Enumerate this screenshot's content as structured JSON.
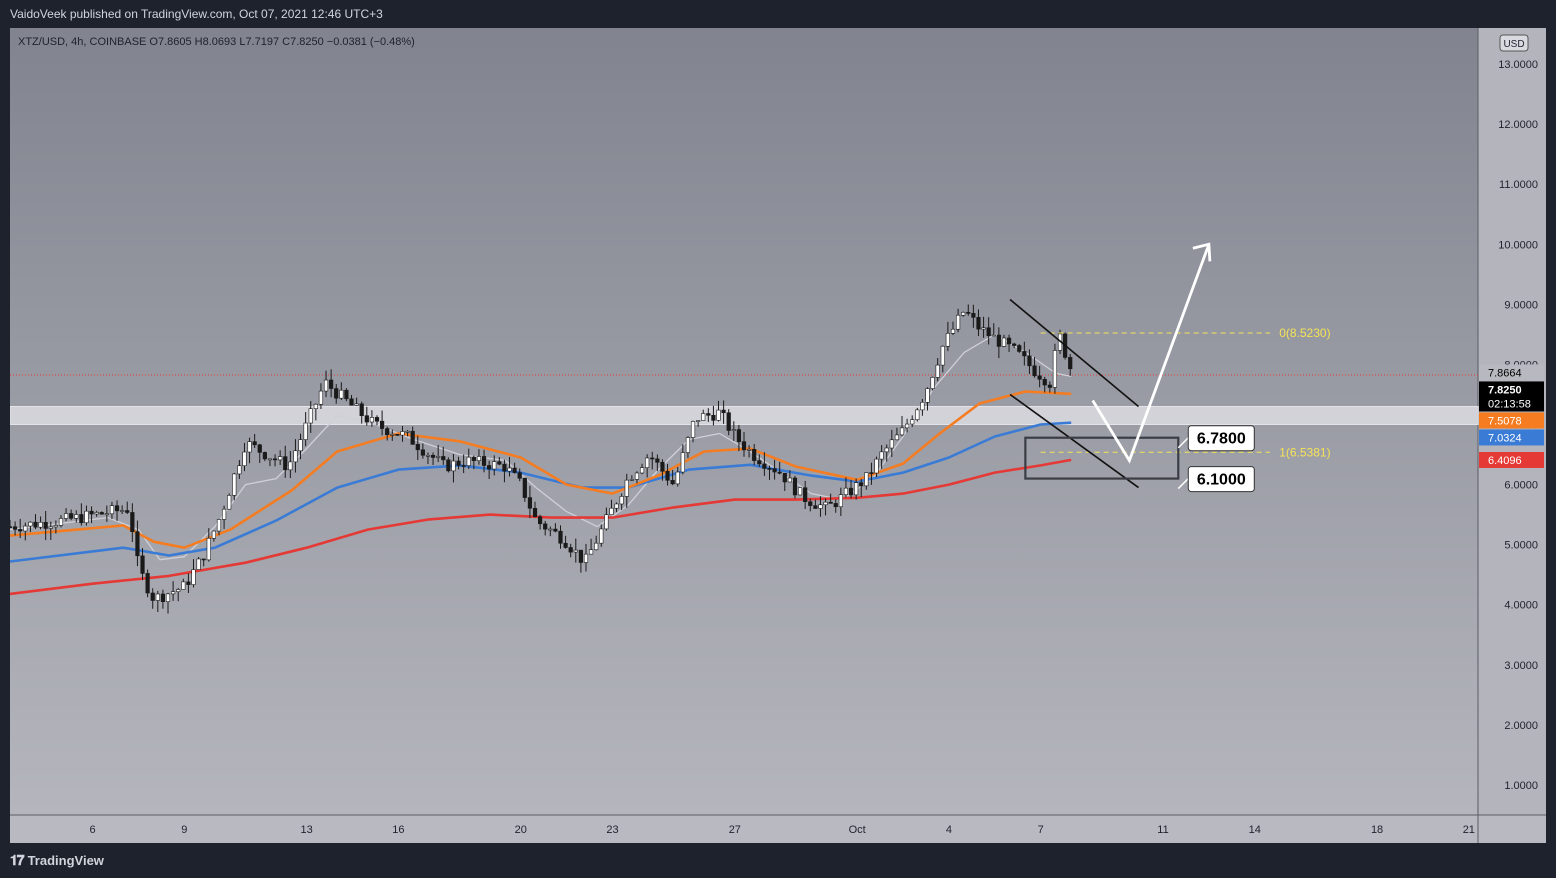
{
  "header": {
    "published": "VaidoVeek published on TradingView.com, Oct 07, 2021 12:46 UTC+3"
  },
  "footer": {
    "brand": "TradingView"
  },
  "colors": {
    "ema_orange": "#f57c20",
    "ema_blue": "#3a7bd5",
    "ema_red": "#e53935",
    "ma_grey": "#cfcfd8",
    "bull_candle": "#ffffff",
    "bear_candle": "#1a1a1a",
    "fib_label": "#f5e356"
  },
  "chart_data": {
    "type": "candlestick",
    "symbol_line": "XTZ/USD, 4h, COINBASE  O7.8605  H8.0693  L7.7197  C7.8250  −0.0381 (−0.48%)",
    "currency_badge": "USD",
    "ylim": [
      0.5,
      13.6
    ],
    "y_ticks": [
      "13.0000",
      "12.0000",
      "11.0000",
      "10.0000",
      "9.0000",
      "8.0000",
      "7.0000",
      "6.0000",
      "5.0000",
      "4.0000",
      "3.0000",
      "2.0000",
      "1.0000"
    ],
    "y_tick_values": [
      13,
      12,
      11,
      10,
      9,
      8,
      7,
      6,
      5,
      4,
      3,
      2,
      1
    ],
    "x_ticks": [
      "6",
      "9",
      "13",
      "16",
      "20",
      "23",
      "27",
      "Oct",
      "4",
      "7",
      "11",
      "14",
      "18",
      "21"
    ],
    "x_tick_days": [
      6,
      9,
      13,
      16,
      20,
      23,
      27,
      31,
      34,
      37,
      41,
      44,
      48,
      51
    ],
    "x_day_range": [
      3.3,
      51.3
    ],
    "price_labels": [
      {
        "text": "7.8664",
        "value": 7.8664,
        "bg": "#b8b8c0",
        "fg": "#000000"
      },
      {
        "text": "7.8250",
        "value": 7.825,
        "bg": "#000000",
        "fg": "#ffffff",
        "sub": "02:13:58"
      },
      {
        "text": "7.5078",
        "value": 7.5078,
        "bg": "#f57c20",
        "fg": "#ffffff"
      },
      {
        "text": "7.0324",
        "value": 7.0324,
        "bg": "#3a7bd5",
        "fg": "#ffffff"
      },
      {
        "text": "6.4096",
        "value": 6.4096,
        "bg": "#e53935",
        "fg": "#ffffff"
      }
    ],
    "fib_levels": [
      {
        "label": "0(8.5230)",
        "value": 8.523
      },
      {
        "label": "1(6.5381)",
        "value": 6.5381
      }
    ],
    "annotations": [
      {
        "label": "6.7800",
        "value": 6.78
      },
      {
        "label": "6.1000",
        "value": 6.1
      }
    ],
    "support_zone": [
      7.0,
      7.3
    ],
    "target_box": {
      "day_start": 36.5,
      "day_end": 41.5,
      "low": 6.1,
      "high": 6.78
    },
    "current_price": 7.825,
    "channel": {
      "upper": [
        [
          36.0,
          9.08
        ],
        [
          40.2,
          7.3
        ]
      ],
      "lower": [
        [
          36.0,
          7.5
        ],
        [
          40.2,
          5.95
        ]
      ]
    },
    "projection": [
      [
        38.7,
        7.4
      ],
      [
        39.9,
        6.4
      ],
      [
        42.5,
        10.0
      ]
    ],
    "ohlc_anchors": [
      [
        3.3,
        5.3
      ],
      [
        5.0,
        5.4
      ],
      [
        7.2,
        5.6
      ],
      [
        7.5,
        4.6
      ],
      [
        8.0,
        4.1
      ],
      [
        9.0,
        4.3
      ],
      [
        9.6,
        4.8
      ],
      [
        10.2,
        5.5
      ],
      [
        11.0,
        6.7
      ],
      [
        12.4,
        6.3
      ],
      [
        13.0,
        7.0
      ],
      [
        13.6,
        7.7
      ],
      [
        14.5,
        7.3
      ],
      [
        15.2,
        7.0
      ],
      [
        16.3,
        6.8
      ],
      [
        17.5,
        6.3
      ],
      [
        18.2,
        6.4
      ],
      [
        19.5,
        6.3
      ],
      [
        20.0,
        6.0
      ],
      [
        20.5,
        5.4
      ],
      [
        21.4,
        5.1
      ],
      [
        22.1,
        4.7
      ],
      [
        22.8,
        5.4
      ],
      [
        23.5,
        6.1
      ],
      [
        24.2,
        6.5
      ],
      [
        25.0,
        6.0
      ],
      [
        25.7,
        7.1
      ],
      [
        26.5,
        7.2
      ],
      [
        27.0,
        6.8
      ],
      [
        27.6,
        6.5
      ],
      [
        28.5,
        6.2
      ],
      [
        29.2,
        5.8
      ],
      [
        30.0,
        5.6
      ],
      [
        30.8,
        5.9
      ],
      [
        31.3,
        6.1
      ],
      [
        31.8,
        6.5
      ],
      [
        32.5,
        6.9
      ],
      [
        33.2,
        7.5
      ],
      [
        33.8,
        8.3
      ],
      [
        34.5,
        8.9
      ],
      [
        35.0,
        8.6
      ],
      [
        35.6,
        8.4
      ],
      [
        36.2,
        8.2
      ],
      [
        36.8,
        7.9
      ],
      [
        37.3,
        7.7
      ],
      [
        37.6,
        8.5
      ],
      [
        38.0,
        7.9
      ],
      [
        38.1,
        7.83
      ]
    ],
    "indicators": {
      "ema_orange": [
        [
          3.3,
          5.15
        ],
        [
          7.0,
          5.32
        ],
        [
          8.0,
          5.05
        ],
        [
          9.0,
          4.95
        ],
        [
          10.5,
          5.25
        ],
        [
          12.5,
          5.9
        ],
        [
          14.0,
          6.55
        ],
        [
          16.0,
          6.85
        ],
        [
          18.0,
          6.72
        ],
        [
          20.0,
          6.45
        ],
        [
          21.5,
          6.0
        ],
        [
          23.0,
          5.85
        ],
        [
          24.5,
          6.15
        ],
        [
          26.0,
          6.55
        ],
        [
          27.5,
          6.6
        ],
        [
          29.0,
          6.3
        ],
        [
          31.0,
          6.08
        ],
        [
          32.5,
          6.35
        ],
        [
          33.7,
          6.85
        ],
        [
          35.0,
          7.35
        ],
        [
          36.5,
          7.55
        ],
        [
          38.0,
          7.51
        ]
      ],
      "ema_blue": [
        [
          3.3,
          4.72
        ],
        [
          7.0,
          4.95
        ],
        [
          8.5,
          4.82
        ],
        [
          10.0,
          4.95
        ],
        [
          12.0,
          5.4
        ],
        [
          14.0,
          5.95
        ],
        [
          16.0,
          6.25
        ],
        [
          18.0,
          6.32
        ],
        [
          20.0,
          6.2
        ],
        [
          22.0,
          5.95
        ],
        [
          23.5,
          5.95
        ],
        [
          25.5,
          6.25
        ],
        [
          27.5,
          6.33
        ],
        [
          29.5,
          6.15
        ],
        [
          31.0,
          6.05
        ],
        [
          32.5,
          6.2
        ],
        [
          34.0,
          6.45
        ],
        [
          35.5,
          6.8
        ],
        [
          37.0,
          7.0
        ],
        [
          38.0,
          7.03
        ]
      ],
      "ema_red": [
        [
          3.3,
          4.18
        ],
        [
          6.0,
          4.35
        ],
        [
          8.5,
          4.48
        ],
        [
          11.0,
          4.7
        ],
        [
          13.0,
          4.95
        ],
        [
          15.0,
          5.25
        ],
        [
          17.0,
          5.42
        ],
        [
          19.0,
          5.5
        ],
        [
          21.0,
          5.45
        ],
        [
          23.0,
          5.45
        ],
        [
          25.0,
          5.62
        ],
        [
          27.0,
          5.75
        ],
        [
          29.0,
          5.75
        ],
        [
          31.0,
          5.78
        ],
        [
          32.5,
          5.85
        ],
        [
          34.0,
          6.0
        ],
        [
          35.5,
          6.2
        ],
        [
          37.0,
          6.32
        ],
        [
          38.0,
          6.41
        ]
      ],
      "ma_grey": [
        [
          3.3,
          5.25
        ],
        [
          6.5,
          5.45
        ],
        [
          7.5,
          5.25
        ],
        [
          8.2,
          4.75
        ],
        [
          9.0,
          4.8
        ],
        [
          10.0,
          5.3
        ],
        [
          11.0,
          6.0
        ],
        [
          12.0,
          6.1
        ],
        [
          13.0,
          6.6
        ],
        [
          14.0,
          7.15
        ],
        [
          15.0,
          7.05
        ],
        [
          16.5,
          6.75
        ],
        [
          18.0,
          6.5
        ],
        [
          19.5,
          6.4
        ],
        [
          20.5,
          5.95
        ],
        [
          21.5,
          5.55
        ],
        [
          22.5,
          5.3
        ],
        [
          23.5,
          5.65
        ],
        [
          24.5,
          6.25
        ],
        [
          25.5,
          6.75
        ],
        [
          26.5,
          6.85
        ],
        [
          27.5,
          6.55
        ],
        [
          28.5,
          6.2
        ],
        [
          29.5,
          5.85
        ],
        [
          30.5,
          5.75
        ],
        [
          31.5,
          6.1
        ],
        [
          32.5,
          6.8
        ],
        [
          33.5,
          7.6
        ],
        [
          34.5,
          8.2
        ],
        [
          35.5,
          8.5
        ],
        [
          36.5,
          8.2
        ],
        [
          37.5,
          7.85
        ],
        [
          38.0,
          7.8
        ]
      ]
    }
  }
}
